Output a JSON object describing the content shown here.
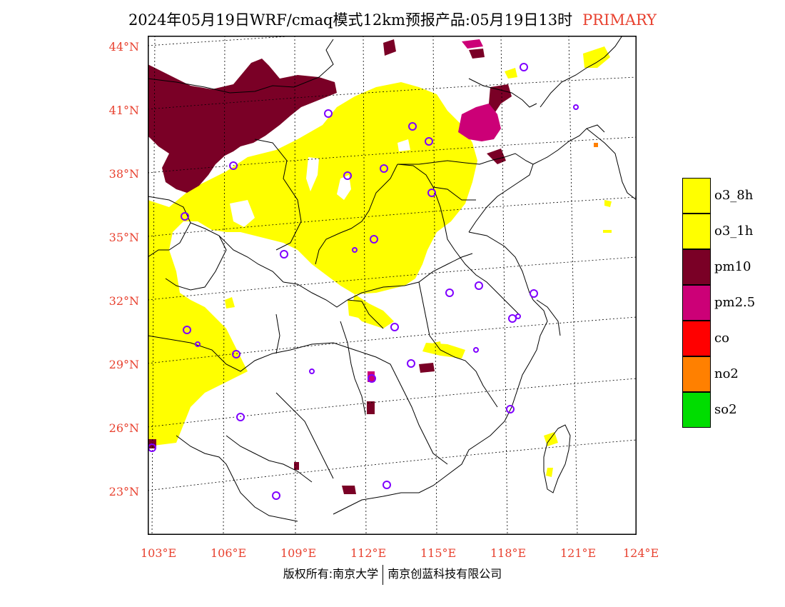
{
  "header": {
    "title": "2024年05月19日WRF/cmaq模式12km预报产品:05月19日13时",
    "badge": "PRIMARY"
  },
  "axes": {
    "lat_labels": [
      "44°N",
      "41°N",
      "38°N",
      "35°N",
      "32°N",
      "29°N",
      "26°N",
      "23°N"
    ],
    "lon_labels": [
      "103°E",
      "106°E",
      "109°E",
      "112°E",
      "115°E",
      "118°E",
      "121°E",
      "124°E"
    ]
  },
  "legend": {
    "items": [
      {
        "label": "o3_8h",
        "color": "#ffff00"
      },
      {
        "label": "o3_1h",
        "color": "#ffff00"
      },
      {
        "label": "pm10",
        "color": "#7a0026"
      },
      {
        "label": "pm2.5",
        "color": "#cc0077"
      },
      {
        "label": "co",
        "color": "#ff0000"
      },
      {
        "label": "no2",
        "color": "#ff8000"
      },
      {
        "label": "so2",
        "color": "#00dd00"
      }
    ]
  },
  "map": {
    "colors": {
      "o3": "#ffff00",
      "pm10": "#7a0026",
      "pm25": "#cc0077",
      "no2": "#ff8000",
      "station": "#7f00ff",
      "grid": "#000000"
    },
    "pollution_regions": [
      "pm10",
      "o3",
      "pm25"
    ],
    "stations": 31
  },
  "footer": {
    "left": "版权所有:南京大学",
    "right": "南京创蓝科技有限公司"
  }
}
